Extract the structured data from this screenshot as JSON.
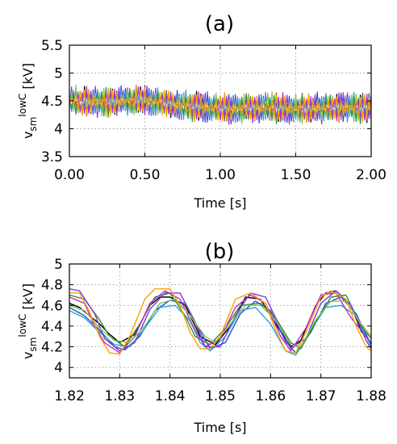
{
  "chart_data": [
    {
      "type": "line",
      "title": "(a)",
      "xlabel": "Time [s]",
      "ylabel": {
        "main": "v",
        "sub": "sm",
        "sup": "lowC",
        "unit": " [kV]"
      },
      "xlim": [
        0,
        2.0
      ],
      "ylim": [
        3.5,
        5.5
      ],
      "x_ticks": [
        0,
        0.5,
        1.0,
        1.5,
        2.0
      ],
      "x_tick_labels": [
        "0.00",
        "0.50",
        "1.00",
        "1.50",
        "2.00"
      ],
      "y_ticks": [
        3.5,
        4,
        4.5,
        5,
        5.5
      ],
      "y_tick_labels": [
        "3.5",
        "4",
        "4.5",
        "5",
        "5.5"
      ],
      "grid": true,
      "band_center": [
        [
          0,
          4.5
        ],
        [
          0.25,
          4.48
        ],
        [
          0.5,
          4.52
        ],
        [
          0.75,
          4.42
        ],
        [
          1.0,
          4.36
        ],
        [
          1.25,
          4.38
        ],
        [
          1.5,
          4.36
        ],
        [
          1.75,
          4.38
        ],
        [
          2.0,
          4.38
        ]
      ],
      "band_halfwidth": 0.3,
      "series": [
        {
          "color": "#000000"
        },
        {
          "color": "#1f4fd0"
        },
        {
          "color": "#22a6d8"
        },
        {
          "color": "#2a8f3f"
        },
        {
          "color": "#c02fbf"
        },
        {
          "color": "#7e3ad6"
        },
        {
          "color": "#8bc34a"
        },
        {
          "color": "#ffa000"
        }
      ]
    },
    {
      "type": "line",
      "title": "(b)",
      "xlabel": "Time [s]",
      "ylabel": {
        "main": "v",
        "sub": "sm",
        "sup": "lowC",
        "unit": " [kV]"
      },
      "xlim": [
        1.82,
        1.88
      ],
      "ylim": [
        3.9,
        5.0
      ],
      "x_ticks": [
        1.82,
        1.83,
        1.84,
        1.85,
        1.86,
        1.87,
        1.88
      ],
      "x_tick_labels": [
        "1.82",
        "1.83",
        "1.84",
        "1.85",
        "1.86",
        "1.87",
        "1.88"
      ],
      "y_ticks": [
        4.0,
        4.2,
        4.4,
        4.6,
        4.8,
        5.0
      ],
      "y_tick_labels": [
        "4",
        "4.2",
        "4.4",
        "4.6",
        "4.8",
        "5"
      ],
      "grid": true,
      "series": [
        {
          "color": "#000000",
          "values": [
            [
              1.82,
              4.62
            ],
            [
              1.822,
              4.58
            ],
            [
              1.826,
              4.42
            ],
            [
              1.828,
              4.32
            ],
            [
              1.83,
              4.24
            ],
            [
              1.833,
              4.32
            ],
            [
              1.836,
              4.6
            ],
            [
              1.838,
              4.68
            ],
            [
              1.84,
              4.68
            ],
            [
              1.843,
              4.6
            ],
            [
              1.846,
              4.3
            ],
            [
              1.849,
              4.22
            ],
            [
              1.852,
              4.4
            ],
            [
              1.855,
              4.68
            ],
            [
              1.858,
              4.66
            ],
            [
              1.861,
              4.42
            ],
            [
              1.864,
              4.2
            ],
            [
              1.866,
              4.26
            ],
            [
              1.869,
              4.6
            ],
            [
              1.871,
              4.72
            ],
            [
              1.873,
              4.74
            ],
            [
              1.876,
              4.6
            ],
            [
              1.878,
              4.35
            ],
            [
              1.88,
              4.24
            ]
          ]
        },
        {
          "color": "#1f4fd0",
          "values": [
            [
              1.82,
              4.58
            ],
            [
              1.823,
              4.5
            ],
            [
              1.826,
              4.36
            ],
            [
              1.829,
              4.2
            ],
            [
              1.831,
              4.17
            ],
            [
              1.834,
              4.3
            ],
            [
              1.837,
              4.55
            ],
            [
              1.84,
              4.65
            ],
            [
              1.843,
              4.62
            ],
            [
              1.846,
              4.35
            ],
            [
              1.848,
              4.18
            ],
            [
              1.851,
              4.24
            ],
            [
              1.854,
              4.52
            ],
            [
              1.857,
              4.64
            ],
            [
              1.86,
              4.55
            ],
            [
              1.863,
              4.25
            ],
            [
              1.865,
              4.14
            ],
            [
              1.868,
              4.34
            ],
            [
              1.871,
              4.62
            ],
            [
              1.874,
              4.68
            ],
            [
              1.877,
              4.52
            ],
            [
              1.88,
              4.22
            ]
          ]
        },
        {
          "color": "#22a6d8",
          "values": [
            [
              1.82,
              4.55
            ],
            [
              1.823,
              4.48
            ],
            [
              1.826,
              4.34
            ],
            [
              1.829,
              4.22
            ],
            [
              1.832,
              4.2
            ],
            [
              1.835,
              4.38
            ],
            [
              1.838,
              4.58
            ],
            [
              1.841,
              4.6
            ],
            [
              1.844,
              4.45
            ],
            [
              1.846,
              4.24
            ],
            [
              1.848,
              4.16
            ],
            [
              1.851,
              4.3
            ],
            [
              1.854,
              4.55
            ],
            [
              1.857,
              4.58
            ],
            [
              1.86,
              4.42
            ],
            [
              1.863,
              4.16
            ],
            [
              1.865,
              4.12
            ],
            [
              1.868,
              4.36
            ],
            [
              1.871,
              4.58
            ],
            [
              1.874,
              4.6
            ],
            [
              1.877,
              4.5
            ],
            [
              1.88,
              4.2
            ]
          ]
        },
        {
          "color": "#2a8f3f",
          "values": [
            [
              1.82,
              4.7
            ],
            [
              1.823,
              4.66
            ],
            [
              1.826,
              4.46
            ],
            [
              1.828,
              4.3
            ],
            [
              1.831,
              4.2
            ],
            [
              1.834,
              4.42
            ],
            [
              1.837,
              4.68
            ],
            [
              1.84,
              4.72
            ],
            [
              1.843,
              4.5
            ],
            [
              1.845,
              4.3
            ],
            [
              1.848,
              4.22
            ],
            [
              1.851,
              4.38
            ],
            [
              1.854,
              4.6
            ],
            [
              1.858,
              4.62
            ],
            [
              1.861,
              4.48
            ],
            [
              1.864,
              4.24
            ],
            [
              1.866,
              4.18
            ],
            [
              1.869,
              4.44
            ],
            [
              1.872,
              4.68
            ],
            [
              1.875,
              4.7
            ],
            [
              1.878,
              4.4
            ],
            [
              1.88,
              4.28
            ]
          ]
        },
        {
          "color": "#c02fbf",
          "values": [
            [
              1.82,
              4.68
            ],
            [
              1.823,
              4.62
            ],
            [
              1.825,
              4.4
            ],
            [
              1.827,
              4.24
            ],
            [
              1.83,
              4.14
            ],
            [
              1.833,
              4.3
            ],
            [
              1.836,
              4.62
            ],
            [
              1.839,
              4.74
            ],
            [
              1.842,
              4.66
            ],
            [
              1.845,
              4.36
            ],
            [
              1.847,
              4.2
            ],
            [
              1.85,
              4.28
            ],
            [
              1.853,
              4.58
            ],
            [
              1.856,
              4.7
            ],
            [
              1.859,
              4.62
            ],
            [
              1.862,
              4.3
            ],
            [
              1.864,
              4.16
            ],
            [
              1.867,
              4.38
            ],
            [
              1.87,
              4.7
            ],
            [
              1.873,
              4.72
            ],
            [
              1.876,
              4.48
            ],
            [
              1.88,
              4.24
            ]
          ]
        },
        {
          "color": "#7e3ad6",
          "values": [
            [
              1.82,
              4.76
            ],
            [
              1.822,
              4.74
            ],
            [
              1.825,
              4.52
            ],
            [
              1.827,
              4.28
            ],
            [
              1.83,
              4.16
            ],
            [
              1.833,
              4.24
            ],
            [
              1.836,
              4.56
            ],
            [
              1.839,
              4.72
            ],
            [
              1.842,
              4.72
            ],
            [
              1.845,
              4.44
            ],
            [
              1.847,
              4.2
            ],
            [
              1.85,
              4.2
            ],
            [
              1.853,
              4.5
            ],
            [
              1.856,
              4.72
            ],
            [
              1.859,
              4.68
            ],
            [
              1.862,
              4.38
            ],
            [
              1.864,
              4.18
            ],
            [
              1.867,
              4.28
            ],
            [
              1.87,
              4.62
            ],
            [
              1.873,
              4.74
            ],
            [
              1.876,
              4.6
            ],
            [
              1.879,
              4.26
            ],
            [
              1.88,
              4.18
            ]
          ]
        },
        {
          "color": "#8bc34a",
          "values": [
            [
              1.82,
              4.6
            ],
            [
              1.823,
              4.55
            ],
            [
              1.826,
              4.38
            ],
            [
              1.829,
              4.26
            ],
            [
              1.832,
              4.24
            ],
            [
              1.835,
              4.4
            ],
            [
              1.838,
              4.62
            ],
            [
              1.841,
              4.66
            ],
            [
              1.844,
              4.5
            ],
            [
              1.847,
              4.3
            ],
            [
              1.849,
              4.24
            ],
            [
              1.852,
              4.42
            ],
            [
              1.855,
              4.6
            ],
            [
              1.858,
              4.6
            ],
            [
              1.861,
              4.46
            ],
            [
              1.864,
              4.22
            ],
            [
              1.866,
              4.2
            ],
            [
              1.869,
              4.46
            ],
            [
              1.872,
              4.64
            ],
            [
              1.875,
              4.64
            ],
            [
              1.878,
              4.42
            ],
            [
              1.88,
              4.3
            ]
          ]
        },
        {
          "color": "#ffa000",
          "values": [
            [
              1.82,
              4.72
            ],
            [
              1.822,
              4.72
            ],
            [
              1.824,
              4.54
            ],
            [
              1.826,
              4.3
            ],
            [
              1.828,
              4.14
            ],
            [
              1.83,
              4.13
            ],
            [
              1.832,
              4.3
            ],
            [
              1.835,
              4.66
            ],
            [
              1.837,
              4.76
            ],
            [
              1.84,
              4.76
            ],
            [
              1.842,
              4.6
            ],
            [
              1.844,
              4.34
            ],
            [
              1.846,
              4.18
            ],
            [
              1.848,
              4.18
            ],
            [
              1.85,
              4.3
            ],
            [
              1.853,
              4.66
            ],
            [
              1.856,
              4.72
            ],
            [
              1.859,
              4.62
            ],
            [
              1.861,
              4.36
            ],
            [
              1.863,
              4.16
            ],
            [
              1.865,
              4.14
            ],
            [
              1.867,
              4.34
            ],
            [
              1.87,
              4.68
            ],
            [
              1.872,
              4.74
            ],
            [
              1.875,
              4.66
            ],
            [
              1.877,
              4.4
            ],
            [
              1.879,
              4.2
            ],
            [
              1.88,
              4.16
            ]
          ]
        }
      ]
    }
  ]
}
